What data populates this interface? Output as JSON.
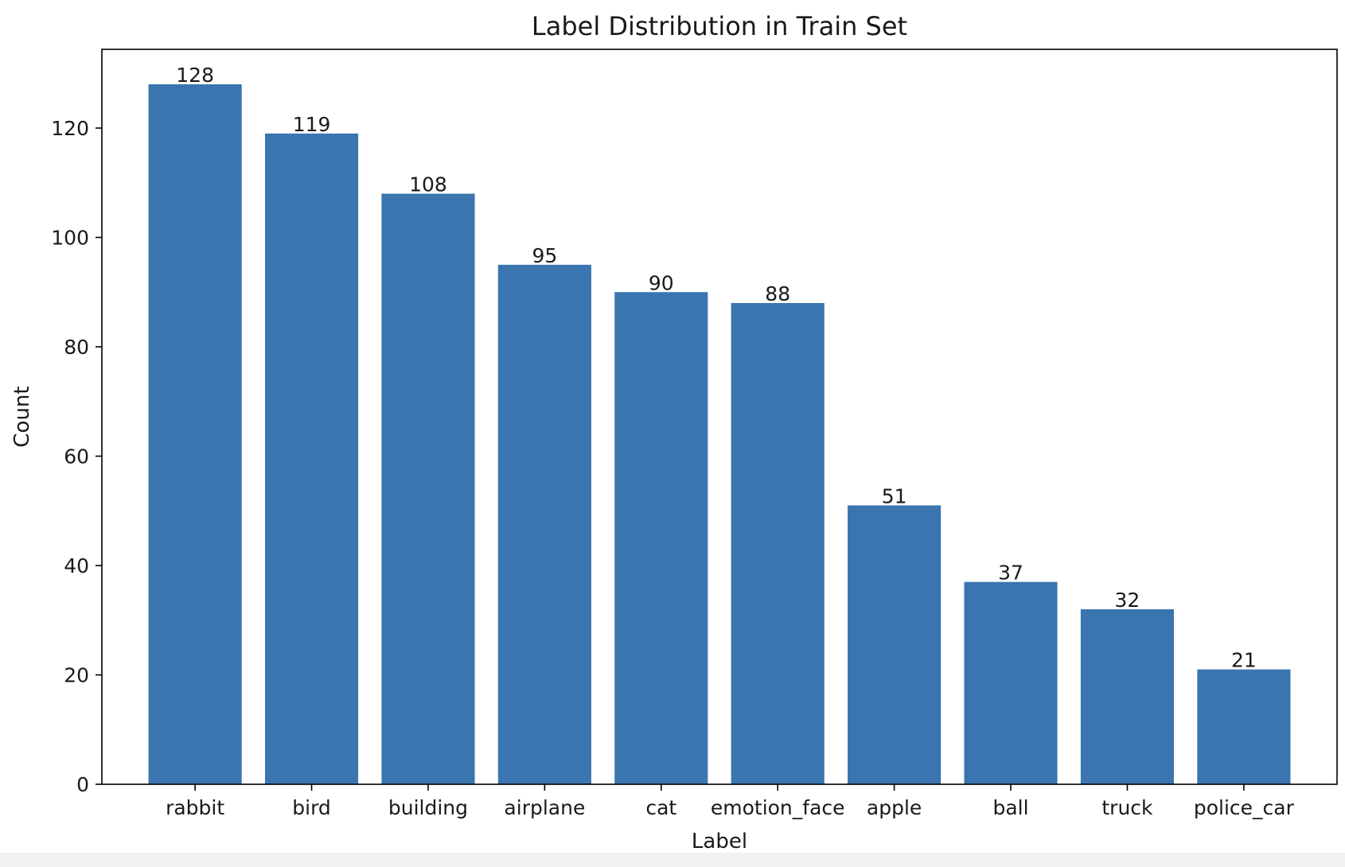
{
  "chart_data": {
    "type": "bar",
    "title": "Label Distribution in Train Set",
    "xlabel": "Label",
    "ylabel": "Count",
    "categories": [
      "rabbit",
      "bird",
      "building",
      "airplane",
      "cat",
      "emotion_face",
      "apple",
      "ball",
      "truck",
      "police_car"
    ],
    "values": [
      128,
      119,
      108,
      95,
      90,
      88,
      51,
      37,
      32,
      21
    ],
    "ylim": [
      0,
      134.4
    ],
    "yticks": [
      0,
      20,
      40,
      60,
      80,
      100,
      120
    ],
    "grid": false,
    "bar_color": "#3a75af",
    "show_value_labels": true
  }
}
